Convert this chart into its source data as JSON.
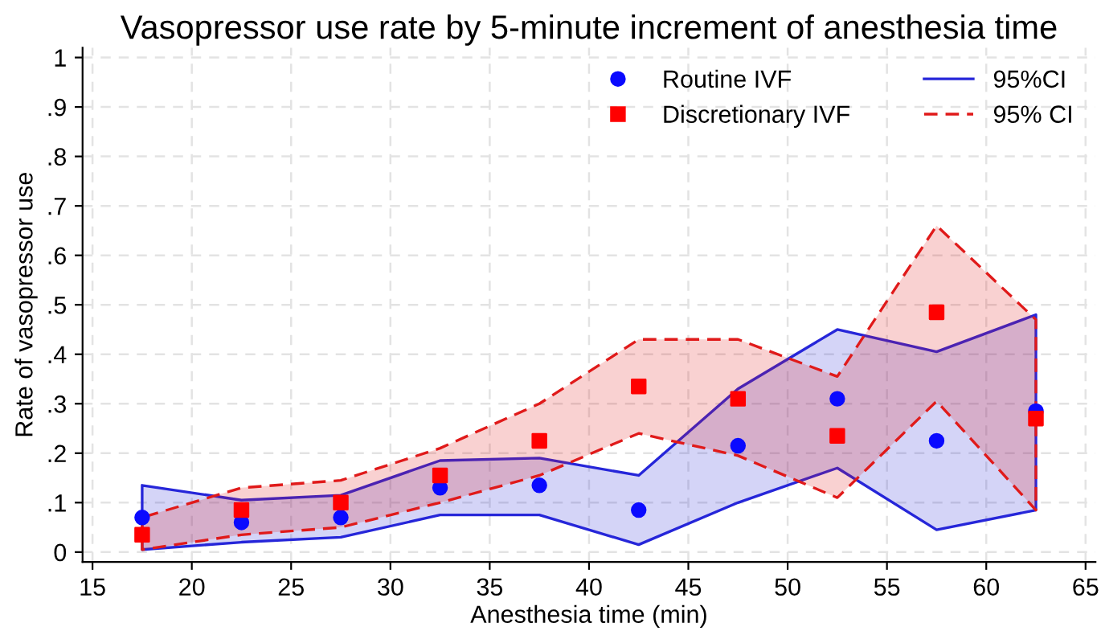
{
  "chart_data": {
    "type": "scatter",
    "title": "Vasopressor use rate by 5-minute increment of anesthesia time",
    "xlabel": "Anesthesia time (min)",
    "ylabel": "Rate of vasopressor use",
    "x": [
      17.5,
      22.5,
      27.5,
      32.5,
      37.5,
      42.5,
      47.5,
      52.5,
      57.5,
      62.5
    ],
    "series": [
      {
        "name": "Routine IVF",
        "marker": "circle",
        "color": "#0a0aff",
        "values": [
          0.07,
          0.06,
          0.07,
          0.13,
          0.135,
          0.085,
          0.215,
          0.31,
          0.225,
          0.285
        ]
      },
      {
        "name": "Discretionary IVF",
        "marker": "square",
        "color": "#ff0000",
        "values": [
          0.035,
          0.085,
          0.1,
          0.155,
          0.225,
          0.335,
          0.31,
          0.235,
          0.485,
          0.27
        ]
      },
      {
        "name": "95%CI",
        "type": "line",
        "line_style": "solid",
        "color": "#2626d9",
        "values": [
          null,
          null,
          null,
          null,
          null,
          null,
          null,
          null,
          null,
          null
        ],
        "lower": [
          0.005,
          0.02,
          0.03,
          0.075,
          0.075,
          0.015,
          0.1,
          0.17,
          0.045,
          0.085
        ],
        "upper": [
          0.135,
          0.105,
          0.115,
          0.185,
          0.19,
          0.155,
          0.33,
          0.45,
          0.405,
          0.48
        ]
      },
      {
        "name": "95% CI",
        "type": "line",
        "line_style": "dashed",
        "color": "#e01a1a",
        "values": [
          null,
          null,
          null,
          null,
          null,
          null,
          null,
          null,
          null,
          null
        ],
        "lower": [
          0.005,
          0.035,
          0.05,
          0.1,
          0.155,
          0.24,
          0.195,
          0.11,
          0.305,
          0.085
        ],
        "upper": [
          0.07,
          0.13,
          0.145,
          0.21,
          0.3,
          0.43,
          0.43,
          0.355,
          0.66,
          0.47
        ]
      }
    ],
    "xlim": [
      14.5,
      65.5
    ],
    "ylim": [
      -0.02,
      1.02
    ],
    "xticks": [
      15,
      20,
      25,
      30,
      35,
      40,
      45,
      50,
      55,
      60,
      65
    ],
    "yticks": [
      0,
      {
        "value": 0.1,
        "label": ".1"
      },
      {
        "value": 0.2,
        "label": ".2"
      },
      {
        "value": 0.3,
        "label": ".3"
      },
      {
        "value": 0.4,
        "label": ".4"
      },
      {
        "value": 0.5,
        "label": ".5"
      },
      {
        "value": 0.6,
        "label": ".6"
      },
      {
        "value": 0.7,
        "label": ".7"
      },
      {
        "value": 0.8,
        "label": ".8"
      },
      {
        "value": 0.9,
        "label": ".9"
      },
      1
    ],
    "grid": true,
    "legend": "top right"
  }
}
